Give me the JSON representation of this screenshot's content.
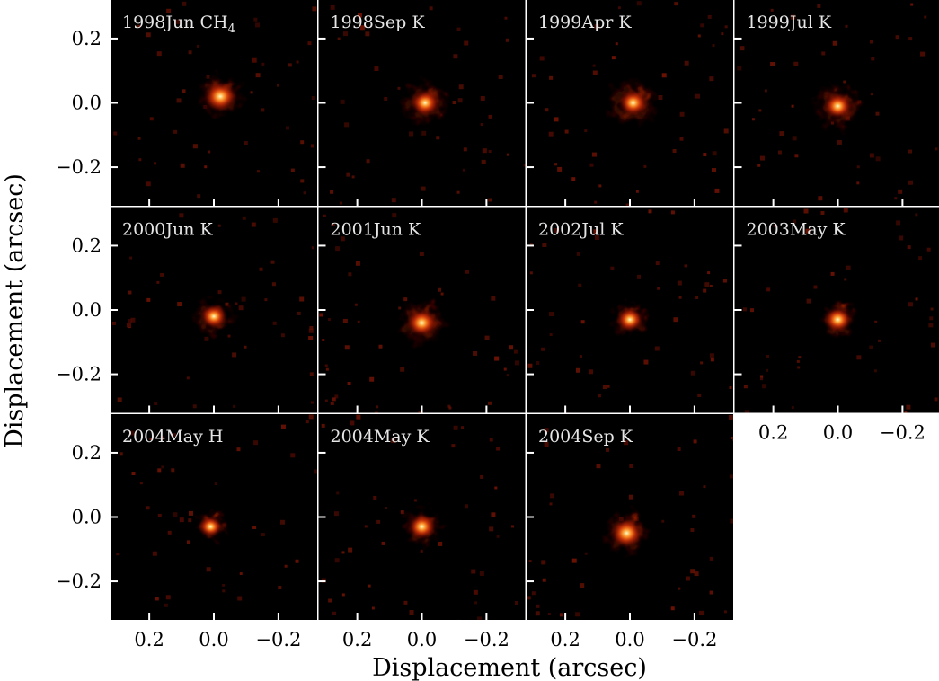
{
  "chart_data": {
    "type": "heatmap",
    "layout": {
      "rows": 3,
      "cols": 4
    },
    "xlabel": "Displacement (arcsec)",
    "ylabel": "Displacement (arcsec)",
    "xlim": [
      0.32,
      -0.32
    ],
    "ylim": [
      -0.32,
      0.32
    ],
    "xticks": [
      0.2,
      0.0,
      -0.2
    ],
    "yticks": [
      0.2,
      0.0,
      -0.2
    ],
    "xtick_labels": [
      "0.2",
      "0.0",
      "−0.2"
    ],
    "ytick_labels": [
      "0.2",
      "0.0",
      "−0.2"
    ],
    "colormap": "hot",
    "background_color": "#000000",
    "panels": [
      {
        "label": "1998Jun CH",
        "label_sub": "4",
        "peak": [
          -0.02,
          0.02
        ],
        "halo": 0.08,
        "core": 0.035
      },
      {
        "label": "1998Sep K",
        "peak": [
          -0.01,
          0.0
        ],
        "halo": 0.085,
        "core": 0.03
      },
      {
        "label": "1999Apr K",
        "peak": [
          -0.01,
          0.0
        ],
        "halo": 0.09,
        "core": 0.03
      },
      {
        "label": "1999Jul K",
        "peak": [
          0.0,
          -0.01
        ],
        "halo": 0.085,
        "core": 0.03
      },
      {
        "label": "2000Jun K",
        "peak": [
          0.0,
          -0.02
        ],
        "halo": 0.07,
        "core": 0.028
      },
      {
        "label": "2001Jun K",
        "peak": [
          0.0,
          -0.04
        ],
        "halo": 0.085,
        "core": 0.032
      },
      {
        "label": "2002Jul K",
        "peak": [
          0.0,
          -0.03
        ],
        "halo": 0.07,
        "core": 0.028
      },
      {
        "label": "2003May K",
        "peak": [
          0.0,
          -0.03
        ],
        "halo": 0.065,
        "core": 0.03
      },
      {
        "label": "2004May H",
        "peak": [
          0.01,
          -0.03
        ],
        "halo": 0.055,
        "core": 0.025
      },
      {
        "label": "2004May K",
        "peak": [
          0.0,
          -0.03
        ],
        "halo": 0.07,
        "core": 0.03
      },
      {
        "label": "2004Sep K",
        "peak": [
          0.01,
          -0.05
        ],
        "halo": 0.08,
        "core": 0.035
      }
    ]
  }
}
